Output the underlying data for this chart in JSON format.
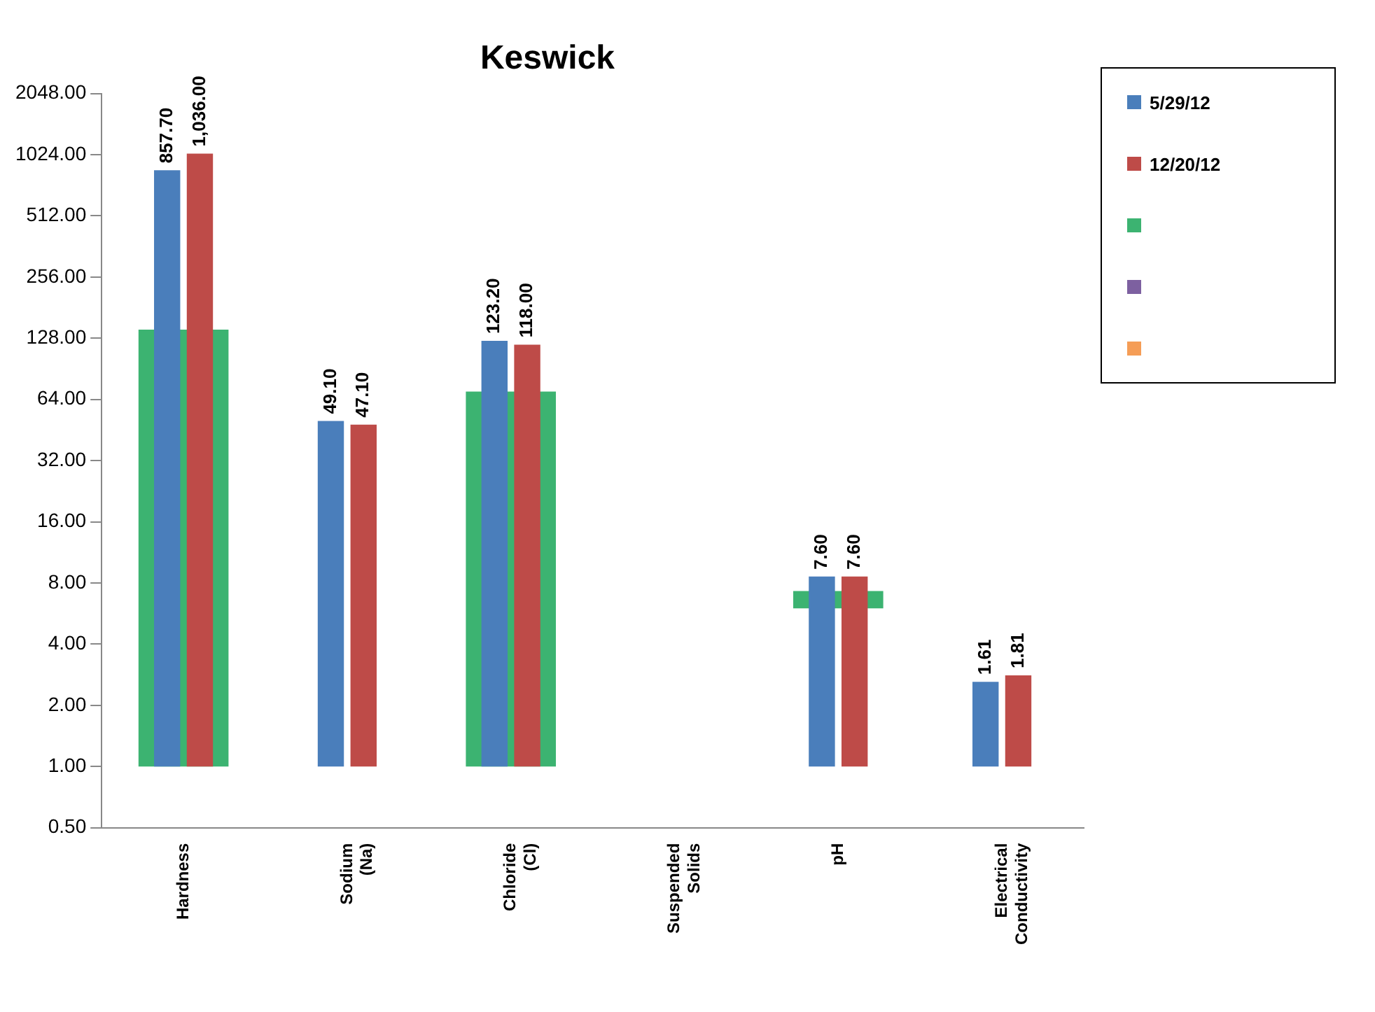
{
  "chart_data": {
    "type": "bar",
    "title": "Keswick",
    "categories": [
      "Hardness",
      "Sodium (Na)",
      "Chloride (Cl)",
      "Suspended Solids",
      "pH",
      "Electrical Conductivity"
    ],
    "series": [
      {
        "name": "5/29/12",
        "color": "#4a7ebb",
        "values": [
          857.7,
          49.1,
          123.2,
          null,
          7.6,
          1.61
        ],
        "base": [
          1,
          1,
          1,
          null,
          1,
          1
        ],
        "value_labels": [
          "857.70",
          "49.10",
          "123.20",
          null,
          "7.60",
          "1.61"
        ]
      },
      {
        "name": "12/20/12",
        "color": "#be4b48",
        "values": [
          1036,
          47.1,
          118,
          null,
          7.6,
          1.81
        ],
        "base": [
          1,
          1,
          1,
          null,
          1,
          1
        ],
        "value_labels": [
          "1,036.00",
          "47.10",
          "118.00",
          null,
          "7.60",
          "1.81"
        ]
      },
      {
        "color": "#3cb371",
        "values": [
          140,
          null,
          69,
          null,
          1.3,
          null
        ],
        "base": [
          1,
          null,
          1,
          null,
          6,
          null
        ]
      },
      {
        "color": "#7d60a0",
        "values": [
          null,
          null,
          null,
          null,
          null,
          null
        ]
      },
      {
        "color": "#f59d56",
        "values": [
          null,
          null,
          null,
          null,
          null,
          null
        ]
      }
    ],
    "log": "y",
    "ylim": [
      0.5,
      2048
    ],
    "yticks": [
      {
        "value": 0.5,
        "label": "0.50"
      },
      {
        "value": 1,
        "label": "1.00"
      },
      {
        "value": 2,
        "label": "2.00"
      },
      {
        "value": 4,
        "label": "4.00"
      },
      {
        "value": 8,
        "label": "8.00"
      },
      {
        "value": 16,
        "label": "16.00"
      },
      {
        "value": 32,
        "label": "32.00"
      },
      {
        "value": 64,
        "label": "64.00"
      },
      {
        "value": 128,
        "label": "128.00"
      },
      {
        "value": 256,
        "label": "256.00"
      },
      {
        "value": 512,
        "label": "512.00"
      },
      {
        "value": 1024,
        "label": "1024.00"
      },
      {
        "value": 2048,
        "label": "2048.00"
      }
    ],
    "grid": false,
    "legend": "top right"
  }
}
